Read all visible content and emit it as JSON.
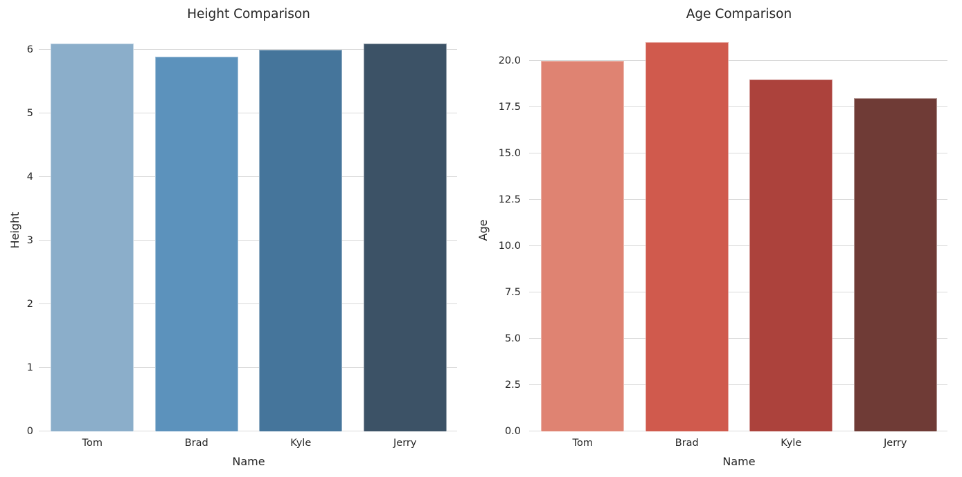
{
  "figure": {
    "background": "#ffffff",
    "text_color": "#262626",
    "grid_color": "#d9d9d9"
  },
  "chart_data": [
    {
      "type": "bar",
      "title": "Height Comparison",
      "xlabel": "Name",
      "ylabel": "Height",
      "categories": [
        "Tom",
        "Brad",
        "Kyle",
        "Jerry"
      ],
      "values": [
        6.1,
        5.9,
        6.0,
        6.1
      ],
      "bar_colors": [
        "#8BAECA",
        "#5C92BC",
        "#45759B",
        "#3C5266"
      ],
      "yticks": [
        0,
        1,
        2,
        3,
        4,
        5,
        6
      ],
      "ytick_labels": [
        "0",
        "1",
        "2",
        "3",
        "4",
        "5",
        "6"
      ],
      "ylim": [
        0,
        6.33
      ],
      "grid": true,
      "legend": null
    },
    {
      "type": "bar",
      "title": "Age Comparison",
      "xlabel": "Name",
      "ylabel": "Age",
      "categories": [
        "Tom",
        "Brad",
        "Kyle",
        "Jerry"
      ],
      "values": [
        20,
        21,
        19,
        18
      ],
      "bar_colors": [
        "#DF8372",
        "#D05A4D",
        "#AC423C",
        "#6F3B36"
      ],
      "yticks": [
        0,
        2.5,
        5,
        7.5,
        10,
        12.5,
        15,
        17.5,
        20
      ],
      "ytick_labels": [
        "0.0",
        "2.5",
        "5.0",
        "7.5",
        "10.0",
        "12.5",
        "15.0",
        "17.5",
        "20.0"
      ],
      "ylim": [
        0,
        21.72
      ],
      "grid": true,
      "legend": null
    }
  ]
}
